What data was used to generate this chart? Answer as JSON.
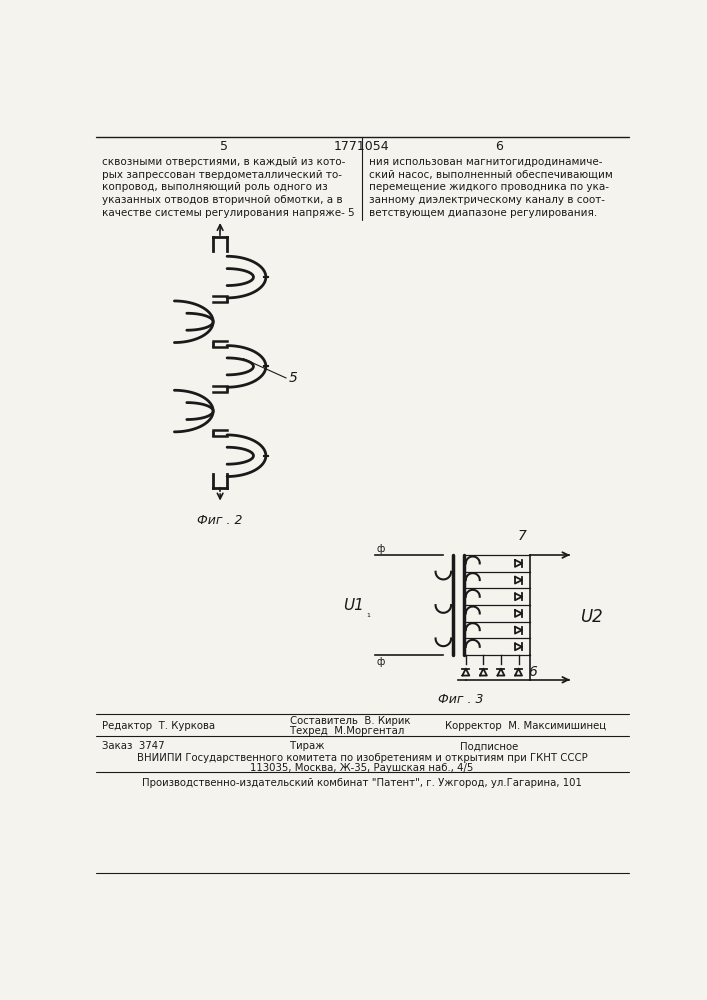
{
  "page_num_left": "5",
  "page_num_center": "1771054",
  "page_num_right": "6",
  "text_left": "сквозными отверстиями, в каждый из кото-\nрых запрессован твердометаллический то-\nкопровод, выполняющий роль одного из\nуказанных отводов вторичной обмотки, а в\nкачестве системы регулирования напряже-",
  "text_right": "ния использован магнитогидродинамиче-\nский насос, выполненный обеспечивающим\nперемещение жидкого проводника по ука-\nзанному диэлектрическому каналу в соот-\nветствующем диапазоне регулирования.",
  "fig2_label": "Фиг . 2",
  "fig3_label": "Фиг . 3",
  "label_5": "5",
  "label_6": "6",
  "label_7": "7",
  "label_U1": "U1",
  "label_U2": "U2",
  "footer_editor": "Редактор  Т. Куркова",
  "footer_composer": "Составитель  В. Кирик",
  "footer_techred": "Техред  М.Моргентал",
  "footer_corrector": "Корректор  М. Максимишинец",
  "footer_order": "Заказ  3747",
  "footer_tirazh": "Тираж",
  "footer_podpisnoe": "Подписное",
  "footer_vniiipi": "ВНИИПИ Государственного комитета по изобретениям и открытиям при ГКНТ СССР",
  "footer_address": "113035, Москва, Ж-35, Раушская наб., 4/5",
  "footer_publisher": "Производственно-издательский комбинат \"Патент\", г. Ужгород, ул.Гагарина, 101",
  "bg_color": "#f5f3ee",
  "line_color": "#1a1a1a",
  "text_color": "#1a1a1a"
}
